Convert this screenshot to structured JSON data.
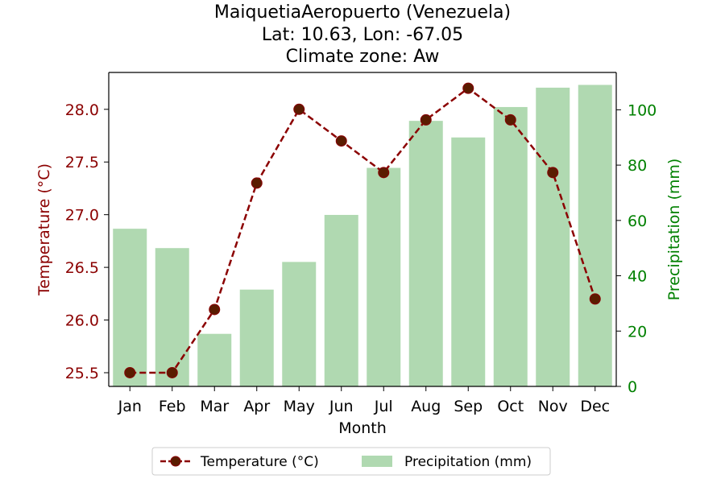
{
  "chart_data": {
    "type": "bar+line",
    "title": [
      "MaiquetiaAeropuerto (Venezuela)",
      "Lat: 10.63, Lon: -67.05",
      "Climate zone: Aw"
    ],
    "xlabel": "Month",
    "categories": [
      "Jan",
      "Feb",
      "Mar",
      "Apr",
      "May",
      "Jun",
      "Jul",
      "Aug",
      "Sep",
      "Oct",
      "Nov",
      "Dec"
    ],
    "left_axis": {
      "label": "Temperature (°C)",
      "ylim": [
        25.37,
        28.35
      ],
      "ticks": [
        25.5,
        26.0,
        26.5,
        27.0,
        27.5,
        28.0
      ],
      "tick_labels": [
        "25.5",
        "26.0",
        "26.5",
        "27.0",
        "27.5",
        "28.0"
      ],
      "color": "#8b0000"
    },
    "right_axis": {
      "label": "Precipitation (mm)",
      "ylim": [
        0,
        113.5
      ],
      "ticks": [
        0,
        20,
        40,
        60,
        80,
        100
      ],
      "tick_labels": [
        "0",
        "20",
        "40",
        "60",
        "80",
        "100"
      ],
      "color": "#008000"
    },
    "series": [
      {
        "name": "Temperature (°C)",
        "kind": "line",
        "axis": "left",
        "color": "#8b0000",
        "values": [
          25.5,
          25.5,
          26.1,
          27.3,
          28.0,
          27.7,
          27.4,
          27.9,
          28.2,
          27.9,
          27.4,
          26.2
        ]
      },
      {
        "name": "Precipitation (mm)",
        "kind": "bar",
        "axis": "right",
        "color": "#b0d9b1",
        "values": [
          57,
          50,
          19,
          35,
          45,
          62,
          79,
          96,
          90,
          101,
          108,
          109
        ]
      }
    ],
    "grid": false,
    "legend": {
      "placement": "bottom-center",
      "entries": [
        "Temperature (°C)",
        "Precipitation (mm)"
      ]
    }
  }
}
